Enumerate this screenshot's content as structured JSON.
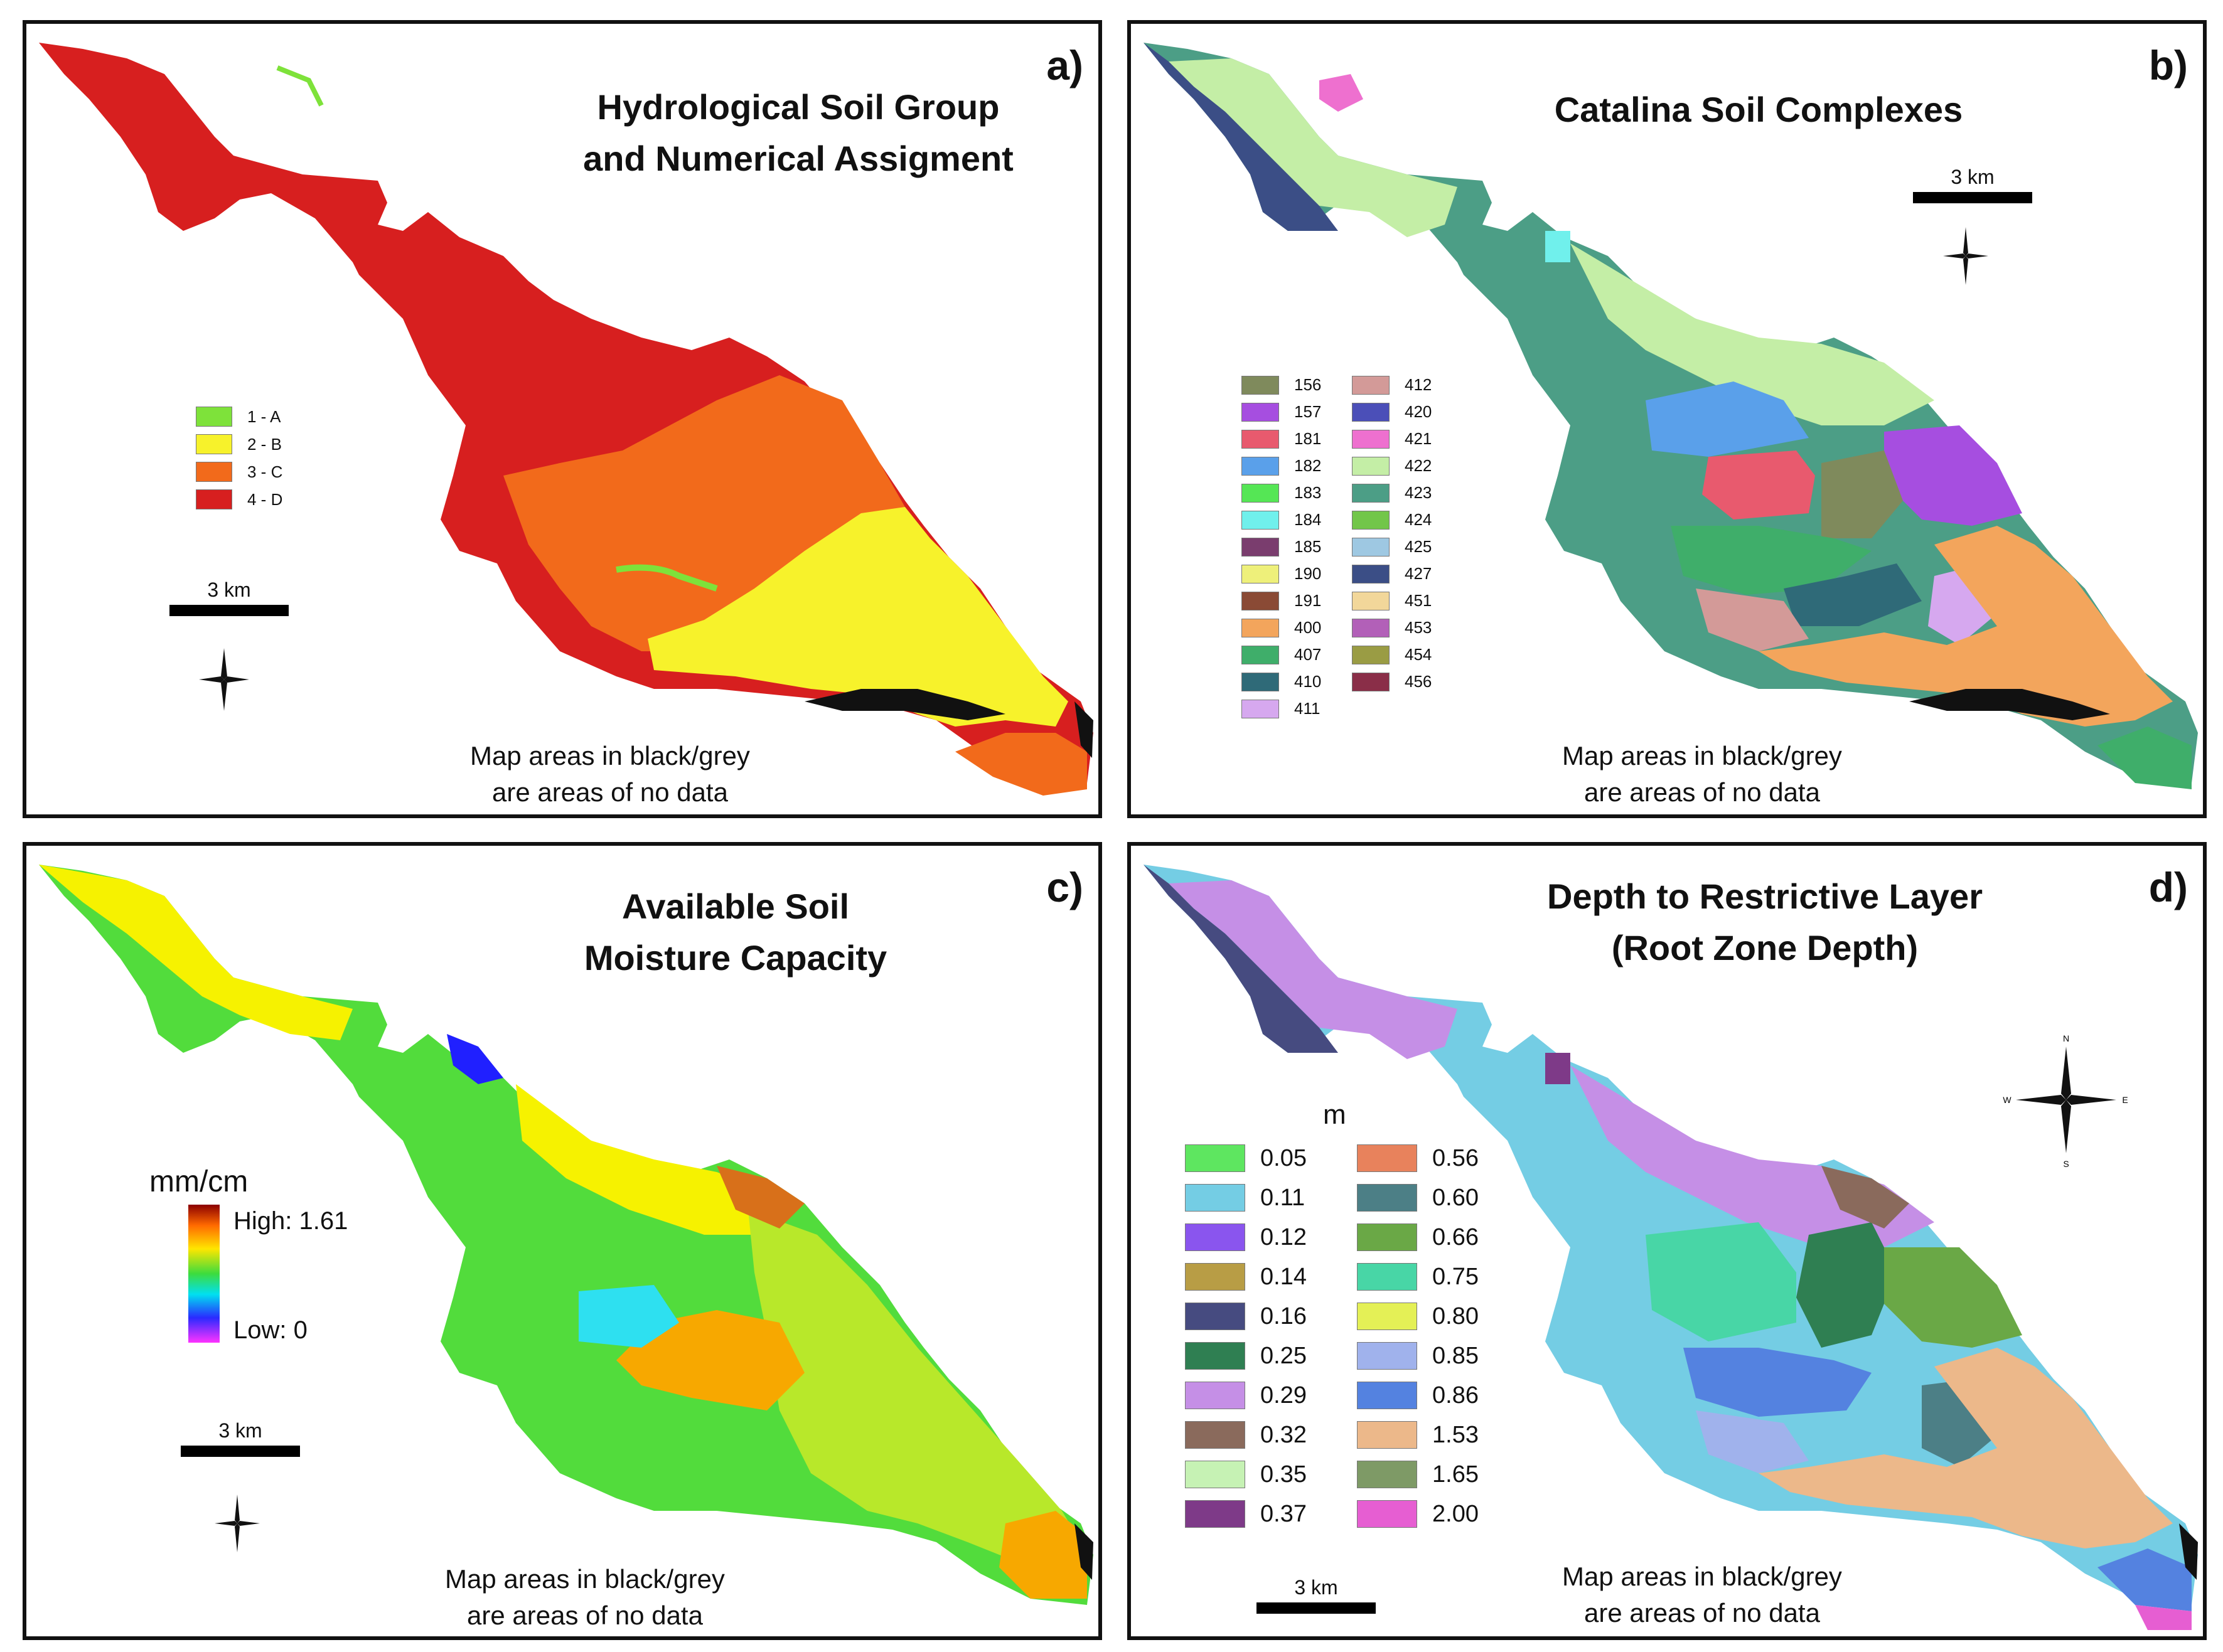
{
  "panel_a": {
    "letter": "a)",
    "title_lines": [
      "Hydrological Soil Group",
      "and Numerical Assigment"
    ],
    "legend": [
      {
        "label": "1 - A",
        "color": "#7ee23a"
      },
      {
        "label": "2 - B",
        "color": "#f7f22b"
      },
      {
        "label": "3 - C",
        "color": "#f26a1b"
      },
      {
        "label": "4 - D",
        "color": "#d71f1f"
      }
    ],
    "scale_label": "3 km",
    "nodata_lines": [
      "Map areas in black/grey",
      "are areas of no data"
    ]
  },
  "panel_b": {
    "letter": "b)",
    "title": "Catalina Soil Complexes",
    "legend_col1": [
      {
        "label": "156",
        "color": "#7f8a5c"
      },
      {
        "label": "157",
        "color": "#a64ee0"
      },
      {
        "label": "181",
        "color": "#e85a6e"
      },
      {
        "label": "182",
        "color": "#5aa0ea"
      },
      {
        "label": "183",
        "color": "#55e655"
      },
      {
        "label": "184",
        "color": "#70f0ec"
      },
      {
        "label": "185",
        "color": "#7a3d6e"
      },
      {
        "label": "190",
        "color": "#eef07a"
      },
      {
        "label": "191",
        "color": "#8a4a35"
      },
      {
        "label": "400",
        "color": "#f3a55c"
      },
      {
        "label": "407",
        "color": "#3fae6a"
      },
      {
        "label": "410",
        "color": "#2f6a78"
      },
      {
        "label": "411",
        "color": "#d6a8ef"
      }
    ],
    "legend_col2": [
      {
        "label": "412",
        "color": "#d39a98"
      },
      {
        "label": "420",
        "color": "#4b4fb8"
      },
      {
        "label": "421",
        "color": "#ee70cf"
      },
      {
        "label": "422",
        "color": "#c4eea6"
      },
      {
        "label": "423",
        "color": "#4c9e86"
      },
      {
        "label": "424",
        "color": "#72c64a"
      },
      {
        "label": "425",
        "color": "#9ec8e2"
      },
      {
        "label": "427",
        "color": "#3b4e86"
      },
      {
        "label": "451",
        "color": "#f2d79a"
      },
      {
        "label": "453",
        "color": "#b260b8"
      },
      {
        "label": "454",
        "color": "#9a9c44"
      },
      {
        "label": "456",
        "color": "#8a2e48"
      }
    ],
    "scale_label": "3 km",
    "nodata_lines": [
      "Map areas in black/grey",
      "are areas of no data"
    ]
  },
  "panel_c": {
    "letter": "c)",
    "title_lines": [
      "Available Soil",
      "Moisture Capacity"
    ],
    "unit": "mm/cm",
    "ramp_high": "High: 1.61",
    "ramp_low": "Low: 0",
    "scale_label": "3 km",
    "nodata_lines": [
      "Map areas in black/grey",
      "are areas of no data"
    ]
  },
  "panel_d": {
    "letter": "d)",
    "title_lines": [
      "Depth to Restrictive Layer",
      "(Root Zone Depth)"
    ],
    "unit": "m",
    "legend_col1": [
      {
        "label": "0.05",
        "color": "#5ee660"
      },
      {
        "label": "0.11",
        "color": "#74cde4"
      },
      {
        "label": "0.12",
        "color": "#8a55ee"
      },
      {
        "label": "0.14",
        "color": "#b89d45"
      },
      {
        "label": "0.16",
        "color": "#464b80"
      },
      {
        "label": "0.25",
        "color": "#2f7f52"
      },
      {
        "label": "0.29",
        "color": "#c58fe6"
      },
      {
        "label": "0.32",
        "color": "#8a6a5c"
      },
      {
        "label": "0.35",
        "color": "#c6f2b4"
      },
      {
        "label": "0.37",
        "color": "#7e3a88"
      }
    ],
    "legend_col2": [
      {
        "label": "0.56",
        "color": "#e8825c"
      },
      {
        "label": "0.60",
        "color": "#4c7f86"
      },
      {
        "label": "0.66",
        "color": "#6aa846"
      },
      {
        "label": "0.75",
        "color": "#48d6a6"
      },
      {
        "label": "0.80",
        "color": "#e4f056"
      },
      {
        "label": "0.85",
        "color": "#a0b2ec"
      },
      {
        "label": "0.86",
        "color": "#5482e0"
      },
      {
        "label": "1.53",
        "color": "#ecb88a"
      },
      {
        "label": "1.65",
        "color": "#7e9a66"
      },
      {
        "label": "2.00",
        "color": "#e65ed2"
      }
    ],
    "compass": {
      "n": "N",
      "s": "S",
      "e": "E",
      "w": "W"
    },
    "scale_label": "3 km",
    "nodata_lines": [
      "Map areas in black/grey",
      "are areas of no data"
    ]
  }
}
